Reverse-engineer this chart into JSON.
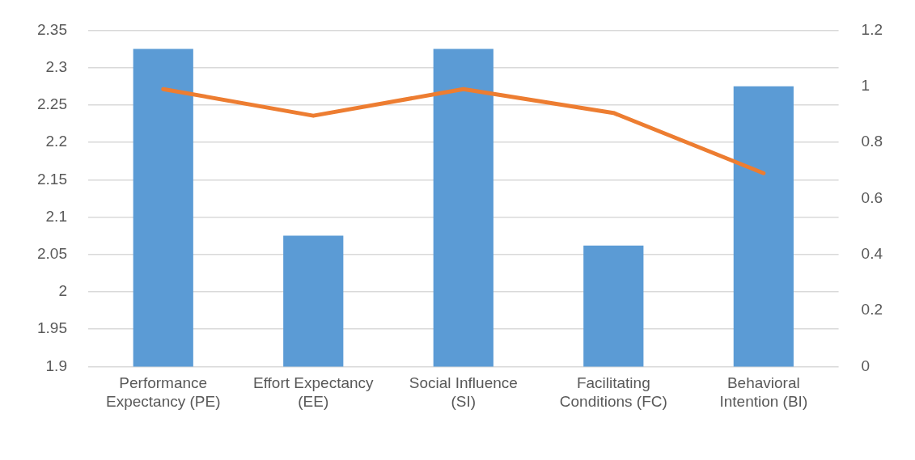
{
  "chart_data": {
    "type": "bar",
    "categories": [
      "Performance Expectancy (PE)",
      "Effort Expectancy (EE)",
      "Social Influence (SI)",
      "Facilitating Conditions (FC)",
      "Behavioral Intention (BI)"
    ],
    "series": [
      {
        "color": "#5b9bd5",
        "values": [
          2.325,
          2.075,
          2.325,
          2.062,
          2.275
        ]
      },
      {
        "type": "line",
        "axis": "y2",
        "color": "#ed7d31",
        "values": [
          0.99,
          0.895,
          0.99,
          0.905,
          0.69
        ]
      }
    ],
    "ylim": [
      1.9,
      2.35
    ],
    "yticks": [
      1.9,
      1.95,
      2,
      2.05,
      2.1,
      2.15,
      2.2,
      2.25,
      2.3,
      2.35
    ],
    "y2lim": [
      0,
      1.2
    ],
    "y2ticks": [
      0,
      0.2,
      0.4,
      0.6,
      0.8,
      1,
      1.2
    ],
    "grid": "y",
    "marker": "none",
    "line_style": "solid"
  }
}
